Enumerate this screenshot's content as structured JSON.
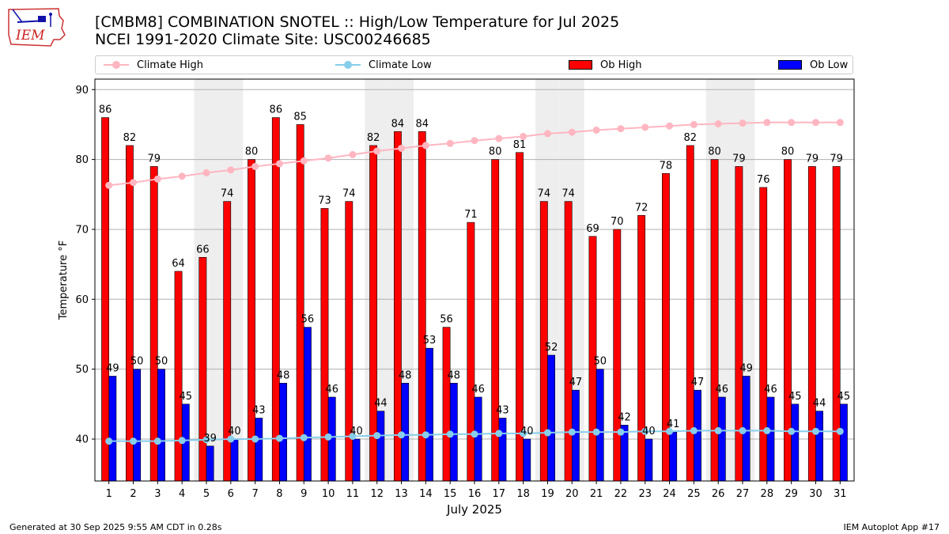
{
  "header": {
    "logo_text": "IEM",
    "title_line1": "[CMBM8] COMBINATION SNOTEL :: High/Low Temperature for Jul 2025",
    "title_line2": "NCEI 1991-2020 Climate Site: USC00246685"
  },
  "colors": {
    "climate_high": "#ffb6c1",
    "climate_low": "#87ceeb",
    "ob_high": "#ff0000",
    "ob_low": "#0000ff",
    "weekend_band": "#eeeeee"
  },
  "legend": {
    "climate_high": "Climate High",
    "climate_low": "Climate Low",
    "ob_high": "Ob High",
    "ob_low": "Ob Low"
  },
  "chart_data": {
    "type": "bar",
    "title": "[CMBM8] COMBINATION SNOTEL :: High/Low Temperature for Jul 2025",
    "xlabel": "July 2025",
    "ylabel": "Temperature °F",
    "ylim": [
      34,
      91.5
    ],
    "yticks": [
      40,
      50,
      60,
      70,
      80,
      90
    ],
    "grid": true,
    "weekend_days": [
      5,
      6,
      12,
      13,
      19,
      20,
      26,
      27
    ],
    "categories": [
      "1",
      "2",
      "3",
      "4",
      "5",
      "6",
      "7",
      "8",
      "9",
      "10",
      "11",
      "12",
      "13",
      "14",
      "15",
      "16",
      "17",
      "18",
      "19",
      "20",
      "21",
      "22",
      "23",
      "24",
      "25",
      "26",
      "27",
      "28",
      "29",
      "30",
      "31"
    ],
    "series": [
      {
        "name": "Ob High",
        "kind": "bar",
        "values": [
          86,
          82,
          79,
          64,
          66,
          74,
          80,
          86,
          85,
          73,
          74,
          82,
          84,
          84,
          56,
          71,
          80,
          81,
          74,
          74,
          69,
          70,
          72,
          78,
          82,
          80,
          79,
          76,
          80,
          79,
          79
        ]
      },
      {
        "name": "Ob Low",
        "kind": "bar",
        "values": [
          49,
          50,
          50,
          45,
          39,
          40,
          43,
          48,
          56,
          46,
          40,
          44,
          48,
          53,
          48,
          46,
          43,
          40,
          52,
          47,
          50,
          42,
          40,
          41,
          47,
          46,
          49,
          46,
          45,
          44,
          45
        ]
      },
      {
        "name": "Climate High",
        "kind": "line",
        "values": [
          76.3,
          76.7,
          77.2,
          77.6,
          78.1,
          78.5,
          79.0,
          79.4,
          79.8,
          80.2,
          80.7,
          81.2,
          81.6,
          82.0,
          82.3,
          82.7,
          83.0,
          83.3,
          83.7,
          83.9,
          84.2,
          84.4,
          84.6,
          84.8,
          85.0,
          85.1,
          85.2,
          85.3,
          85.3,
          85.3,
          85.3
        ]
      },
      {
        "name": "Climate Low",
        "kind": "line",
        "values": [
          39.7,
          39.7,
          39.7,
          39.8,
          39.9,
          40.0,
          40.0,
          40.1,
          40.2,
          40.3,
          40.4,
          40.5,
          40.6,
          40.6,
          40.7,
          40.7,
          40.8,
          40.8,
          40.9,
          41.0,
          41.0,
          41.0,
          41.1,
          41.1,
          41.2,
          41.2,
          41.2,
          41.2,
          41.1,
          41.1,
          41.1
        ]
      }
    ]
  },
  "footer": {
    "left": "Generated at 30 Sep 2025 9:55 AM CDT in 0.28s",
    "right": "IEM Autoplot App #17"
  }
}
